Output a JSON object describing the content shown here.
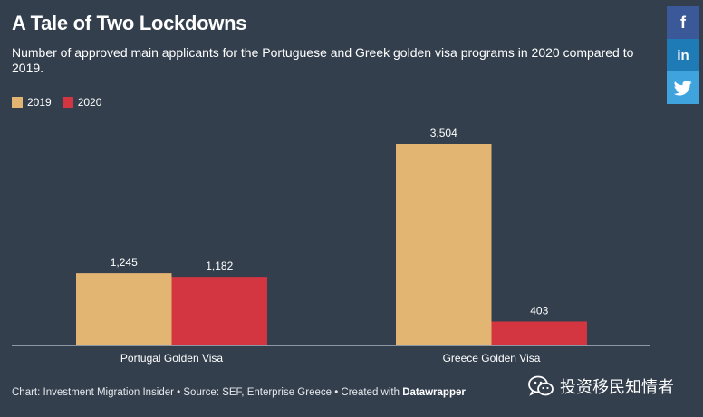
{
  "title": "A Tale of Two Lockdowns",
  "subtitle": "Number of approved main applicants for the Portuguese and Greek golden visa programs in 2020 compared to 2019.",
  "legend": [
    {
      "label": "2019",
      "color": "#e3b572"
    },
    {
      "label": "2020",
      "color": "#d33641"
    }
  ],
  "chart_data": {
    "type": "bar",
    "categories": [
      "Portugal Golden Visa",
      "Greece Golden Visa"
    ],
    "series": [
      {
        "name": "2019",
        "values": [
          1245,
          3504
        ],
        "labels": [
          "1,245",
          "3,504"
        ],
        "color": "#e3b572"
      },
      {
        "name": "2020",
        "values": [
          1182,
          403
        ],
        "labels": [
          "1,182",
          "403"
        ],
        "color": "#d33641"
      }
    ],
    "ylim": [
      0,
      3504
    ]
  },
  "social": {
    "facebook": "f",
    "linkedin": "in",
    "twitter_icon": "twitter-bird-icon"
  },
  "footer": {
    "prefix": "Chart: Investment Migration Insider • Source: SEF, Enterprise Greece • Created with ",
    "tool": "Datawrapper"
  },
  "watermark": {
    "text": "投资移民知情者",
    "icon": "wechat-icon"
  }
}
